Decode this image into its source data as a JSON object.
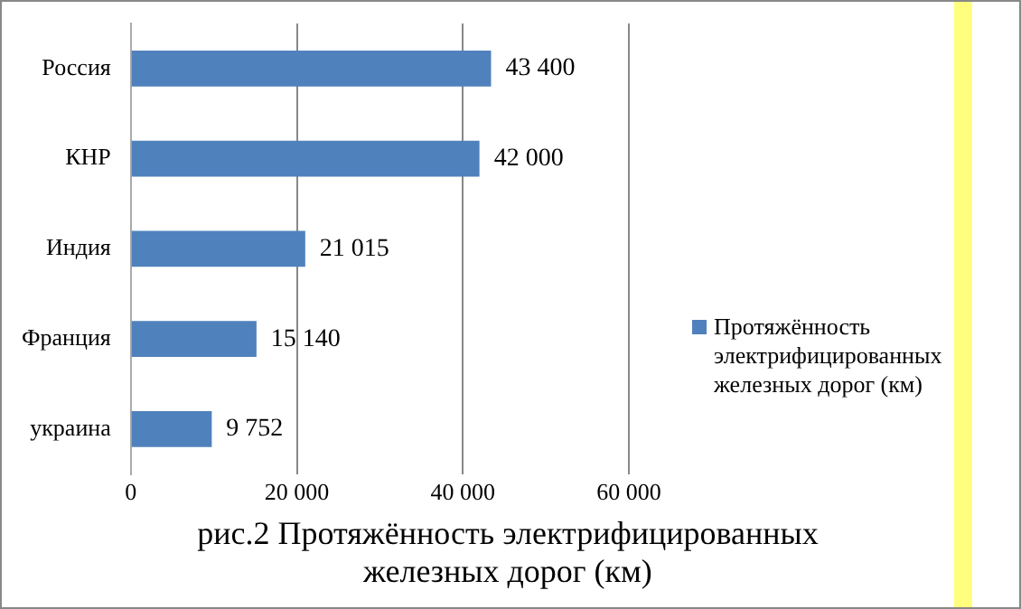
{
  "chart_data": {
    "type": "bar",
    "orientation": "horizontal",
    "title": "рис.2 Протяжённость электрифицированных железных дорог (км)",
    "categories": [
      "Россия",
      "КНР",
      "Индия",
      "Франция",
      "украина"
    ],
    "series": [
      {
        "name": "Протяжённость электрифицированных железных дорог (км)",
        "color": "#4f81bd",
        "values": [
          43400,
          42000,
          21015,
          15140,
          9752
        ],
        "value_labels": [
          "43 400",
          "42 000",
          "21 015",
          "15 140",
          "9 752"
        ]
      }
    ],
    "xlim": [
      0,
      60000
    ],
    "xticks": [
      0,
      {
        "value": 20000,
        "label": "20 000"
      },
      {
        "value": 40000,
        "label": "40 000"
      },
      {
        "value": 60000,
        "label": "60 000"
      }
    ],
    "grid": "x",
    "legend": "right"
  }
}
